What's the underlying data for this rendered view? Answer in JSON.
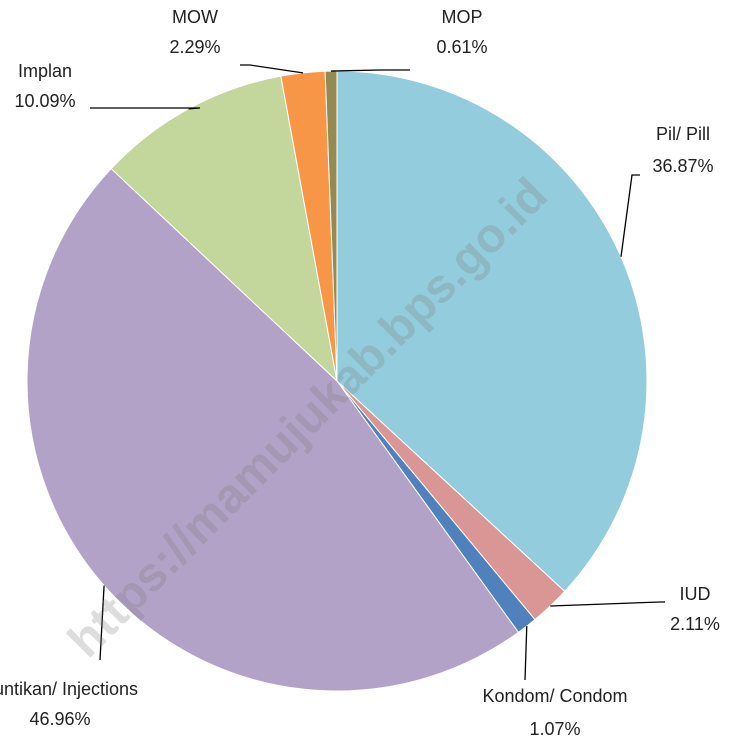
{
  "chart_data": {
    "type": "pie",
    "categories": [
      "Pil/ Pill",
      "IUD",
      "Kondom/ Condom",
      "Suntikan/ Injections",
      "Implan",
      "MOW",
      "MOP"
    ],
    "values": [
      36.87,
      2.11,
      1.07,
      46.96,
      10.09,
      2.29,
      0.61
    ],
    "value_labels": [
      "36.87%",
      "2.11%",
      "1.07%",
      "46.96%",
      "10.09%",
      "2.29%",
      "0.61%"
    ],
    "colors": [
      "#93cddd",
      "#d99694",
      "#4f81bd",
      "#b3a2c7",
      "#c3d69b",
      "#f79646",
      "#948a54"
    ],
    "watermark": "https://mamujukab.bps.go.id"
  }
}
